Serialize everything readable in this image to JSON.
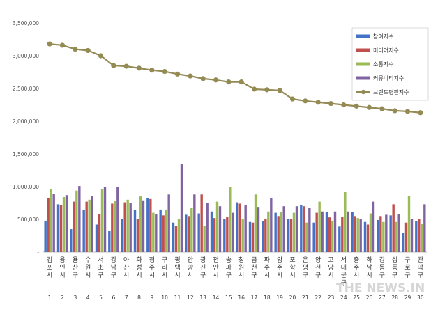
{
  "chart_data": {
    "type": "bar",
    "categories": [
      "김포시",
      "용인시",
      "용산구",
      "수원시",
      "서초구",
      "강남구",
      "아산시",
      "화성시",
      "청주시",
      "구리시",
      "평택시",
      "안양시",
      "광진구",
      "천안시",
      "송파구",
      "창원시",
      "금천구",
      "파주시",
      "양주시",
      "포항시",
      "은평구",
      "양천구",
      "고양시",
      "서대문구",
      "충주시",
      "하남시",
      "강동구",
      "성동구",
      "구로구",
      "관악구"
    ],
    "index_labels": [
      "1",
      "2",
      "3",
      "4",
      "5",
      "6",
      "7",
      "8",
      "9",
      "10",
      "11",
      "12",
      "13",
      "14",
      "15",
      "16",
      "17",
      "18",
      "19",
      "20",
      "21",
      "22",
      "23",
      "24",
      "25",
      "26",
      "27",
      "28",
      "29",
      "30"
    ],
    "series": [
      {
        "name": "참여지수",
        "type": "bar",
        "color": "#4472C4",
        "values": [
          480000,
          730000,
          350000,
          640000,
          420000,
          320000,
          510000,
          640000,
          820000,
          650000,
          450000,
          570000,
          590000,
          620000,
          510000,
          760000,
          460000,
          470000,
          600000,
          510000,
          720000,
          450000,
          610000,
          390000,
          610000,
          460000,
          490000,
          560000,
          290000,
          470000
        ]
      },
      {
        "name": "미디어지수",
        "type": "bar",
        "color": "#C0504D",
        "values": [
          820000,
          720000,
          770000,
          770000,
          580000,
          740000,
          760000,
          500000,
          810000,
          560000,
          400000,
          550000,
          880000,
          520000,
          540000,
          740000,
          450000,
          510000,
          550000,
          510000,
          700000,
          600000,
          530000,
          540000,
          550000,
          420000,
          550000,
          730000,
          450000,
          510000
        ]
      },
      {
        "name": "소통지수",
        "type": "bar",
        "color": "#9BBB59",
        "values": [
          960000,
          840000,
          940000,
          800000,
          960000,
          780000,
          800000,
          850000,
          600000,
          650000,
          510000,
          680000,
          400000,
          770000,
          990000,
          510000,
          880000,
          620000,
          610000,
          600000,
          450000,
          770000,
          480000,
          920000,
          520000,
          590000,
          460000,
          460000,
          860000,
          430000
        ]
      },
      {
        "name": "커뮤니티지수",
        "type": "bar",
        "color": "#8064A2",
        "values": [
          890000,
          870000,
          1010000,
          860000,
          1000000,
          1000000,
          750000,
          790000,
          580000,
          880000,
          1340000,
          880000,
          750000,
          700000,
          600000,
          720000,
          690000,
          830000,
          700000,
          700000,
          670000,
          620000,
          620000,
          620000,
          510000,
          770000,
          570000,
          580000,
          500000,
          730000
        ]
      },
      {
        "name": "브랜드평판지수",
        "type": "line",
        "color": "#948A54",
        "values": [
          3180000,
          3160000,
          3100000,
          3080000,
          3000000,
          2850000,
          2840000,
          2810000,
          2780000,
          2760000,
          2720000,
          2690000,
          2650000,
          2630000,
          2600000,
          2600000,
          2490000,
          2480000,
          2470000,
          2340000,
          2310000,
          2290000,
          2270000,
          2250000,
          2230000,
          2210000,
          2190000,
          2160000,
          2150000,
          2130000
        ]
      }
    ],
    "y_ticks": [
      "-",
      "500,000",
      "1,000,000",
      "1,500,000",
      "2,000,000",
      "2,500,000",
      "3,000,000",
      "3,500,000"
    ],
    "ylim": [
      0,
      3500000
    ],
    "grid": false,
    "legend_position": "right",
    "watermark": "THE NEWS.IN"
  }
}
